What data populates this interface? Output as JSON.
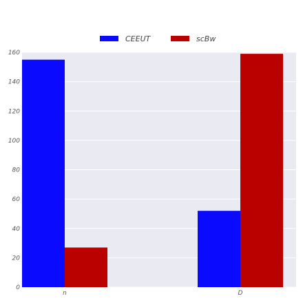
{
  "chart_data": {
    "type": "bar",
    "categories": [
      "n",
      "D"
    ],
    "series": [
      {
        "name": "CEEUT",
        "values": [
          155,
          52
        ],
        "color": "#0a0aff"
      },
      {
        "name": "scBw",
        "values": [
          27,
          159
        ],
        "color": "#bb0000"
      }
    ],
    "ylim": [
      0,
      160
    ],
    "yticks": [
      0,
      20,
      40,
      60,
      80,
      100,
      120,
      140,
      160
    ],
    "xlabel": "",
    "ylabel": "",
    "grid": true,
    "legend": "top-center",
    "plot_background": "#eaeaf2"
  }
}
